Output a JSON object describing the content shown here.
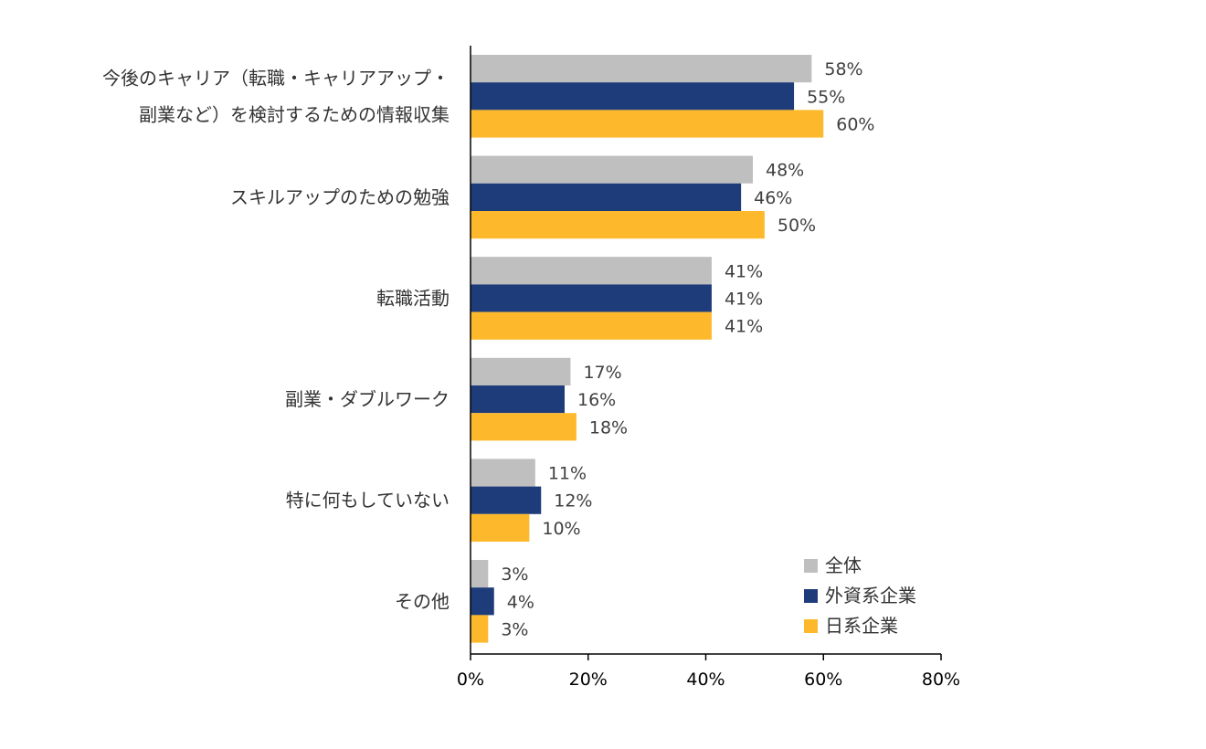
{
  "chart_data": {
    "type": "bar",
    "orientation": "horizontal",
    "categories": [
      [
        "今後のキャリア（転職・キャリアアップ・",
        "副業など）を検討するための情報収集"
      ],
      [
        "スキルアップのための勉強"
      ],
      [
        "転職活動"
      ],
      [
        "副業・ダブルワーク"
      ],
      [
        "特に何もしていない"
      ],
      [
        "その他"
      ]
    ],
    "series": [
      {
        "name": "全体",
        "color": "#bfbfbf",
        "values": [
          58,
          48,
          41,
          17,
          11,
          3
        ]
      },
      {
        "name": "外資系企業",
        "color": "#1f3c7a",
        "values": [
          55,
          46,
          41,
          16,
          12,
          4
        ]
      },
      {
        "name": "日系企業",
        "color": "#fdb92b",
        "values": [
          60,
          50,
          41,
          18,
          10,
          3
        ]
      }
    ],
    "value_labels": [
      [
        "58%",
        "48%",
        "41%",
        "17%",
        "11%",
        "3%"
      ],
      [
        "55%",
        "46%",
        "41%",
        "16%",
        "12%",
        "4%"
      ],
      [
        "60%",
        "50%",
        "41%",
        "18%",
        "10%",
        "3%"
      ]
    ],
    "xlim": [
      0,
      80
    ],
    "xticks": [
      0,
      20,
      40,
      60,
      80
    ],
    "xtick_labels": [
      "0%",
      "20%",
      "40%",
      "60%",
      "80%"
    ],
    "grid": false,
    "legend_position": "bottom-right"
  }
}
